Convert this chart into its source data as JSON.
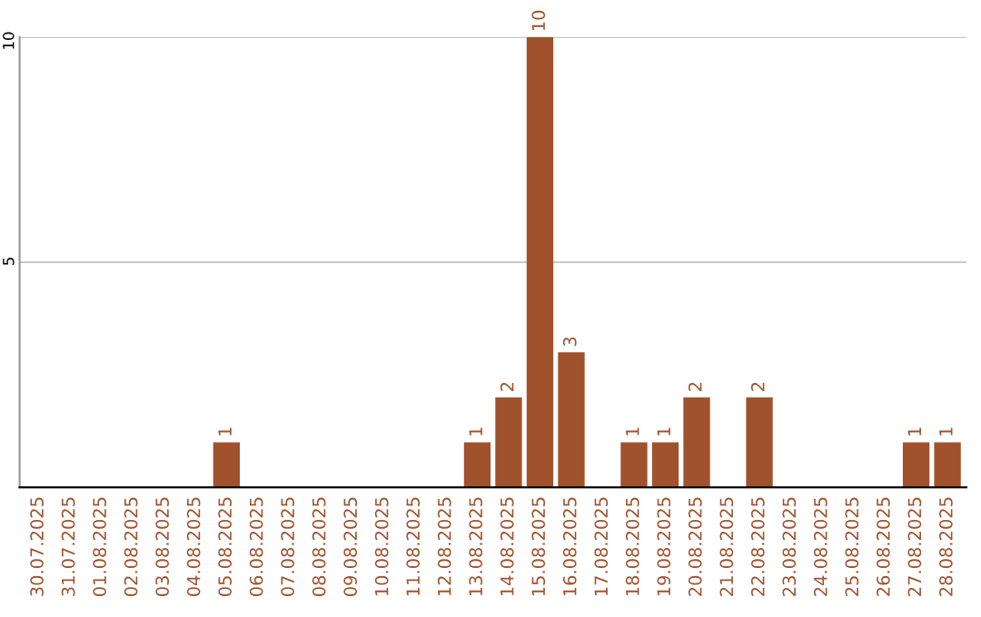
{
  "chart_data": {
    "type": "bar",
    "categories": [
      "30.07.2025",
      "31.07.2025",
      "01.08.2025",
      "02.08.2025",
      "03.08.2025",
      "04.08.2025",
      "05.08.2025",
      "06.08.2025",
      "07.08.2025",
      "08.08.2025",
      "09.08.2025",
      "10.08.2025",
      "11.08.2025",
      "12.08.2025",
      "13.08.2025",
      "14.08.2025",
      "15.08.2025",
      "16.08.2025",
      "17.08.2025",
      "18.08.2025",
      "19.08.2025",
      "20.08.2025",
      "21.08.2025",
      "22.08.2025",
      "23.08.2025",
      "24.08.2025",
      "25.08.2025",
      "26.08.2025",
      "27.08.2025",
      "28.08.2025"
    ],
    "values": [
      0,
      0,
      0,
      0,
      0,
      0,
      1,
      0,
      0,
      0,
      0,
      0,
      0,
      0,
      1,
      2,
      10,
      3,
      0,
      1,
      1,
      2,
      0,
      2,
      0,
      0,
      0,
      0,
      1,
      1
    ],
    "value_labels": [
      null,
      null,
      null,
      null,
      null,
      null,
      "1",
      null,
      null,
      null,
      null,
      null,
      null,
      null,
      "1",
      "2",
      "10",
      "3",
      null,
      "1",
      "1",
      "2",
      null,
      "2",
      null,
      null,
      null,
      null,
      "1",
      "1"
    ],
    "color": "#a0522d",
    "ylim": [
      0,
      10
    ],
    "yticks": [
      5,
      10
    ],
    "grid": "y",
    "legend": false
  }
}
